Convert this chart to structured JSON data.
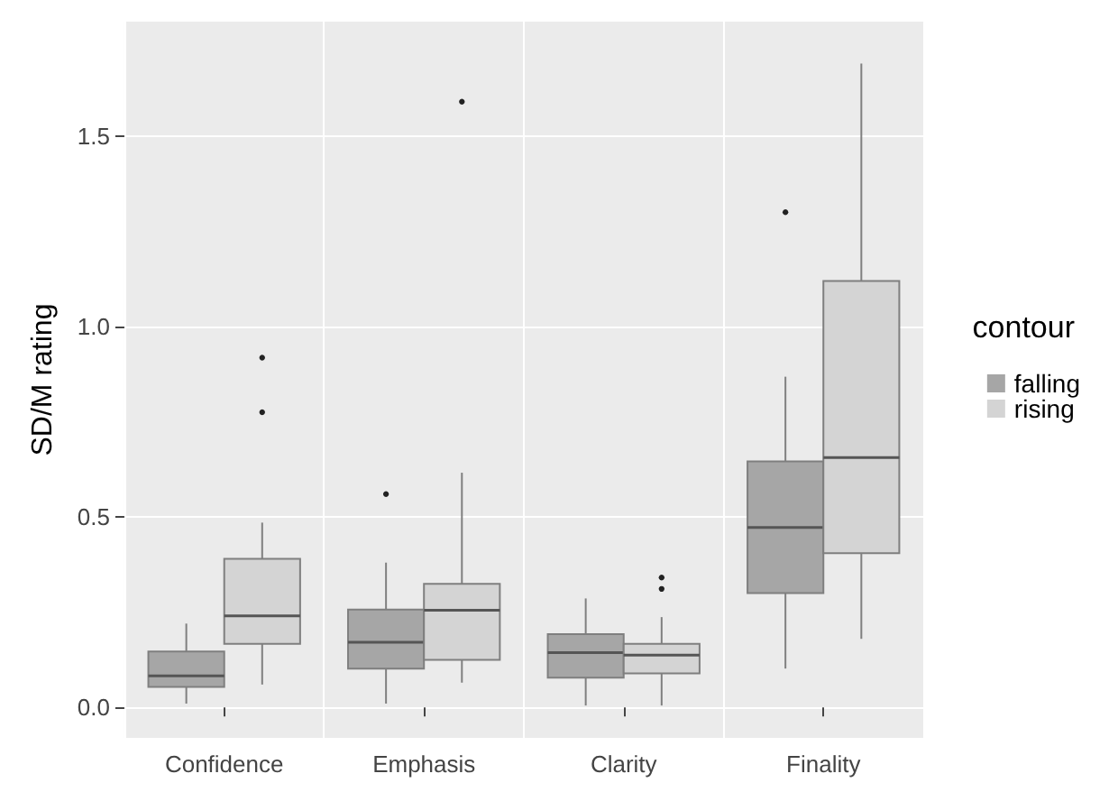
{
  "chart_data": {
    "type": "box",
    "ylabel": "SD/M rating",
    "legend_title": "contour",
    "categories": [
      "Confidence",
      "Emphasis",
      "Clarity",
      "Finality"
    ],
    "ylim": [
      -0.08,
      1.8
    ],
    "yticks": [
      {
        "value": 0,
        "label": "0.0"
      },
      {
        "value": 0.5,
        "label": "0.5"
      },
      {
        "value": 1,
        "label": "1.0"
      },
      {
        "value": 1.5,
        "label": "1.5"
      }
    ],
    "grid": true,
    "legend": "right",
    "series": [
      {
        "name": "falling",
        "color": "#a6a6a6",
        "boxes": [
          {
            "low": 0.01,
            "q1": 0.054,
            "median": 0.083,
            "q3": 0.147,
            "high": 0.22
          },
          {
            "low": 0.01,
            "q1": 0.102,
            "median": 0.171,
            "q3": 0.257,
            "high": 0.38,
            "outliers": [
              0.56
            ]
          },
          {
            "low": 0.005,
            "q1": 0.078,
            "median": 0.144,
            "q3": 0.192,
            "high": 0.286
          },
          {
            "low": 0.102,
            "q1": 0.3,
            "median": 0.472,
            "q3": 0.646,
            "high": 0.868,
            "outliers": [
              1.3
            ]
          }
        ]
      },
      {
        "name": "rising",
        "color": "#d4d4d4",
        "boxes": [
          {
            "low": 0.06,
            "q1": 0.167,
            "median": 0.24,
            "q3": 0.39,
            "high": 0.485,
            "outliers": [
              0.775,
              0.918
            ]
          },
          {
            "low": 0.065,
            "q1": 0.125,
            "median": 0.255,
            "q3": 0.324,
            "high": 0.616,
            "outliers": [
              1.59
            ]
          },
          {
            "low": 0.005,
            "q1": 0.089,
            "median": 0.137,
            "q3": 0.167,
            "high": 0.237,
            "outliers": [
              0.311,
              0.341
            ]
          },
          {
            "low": 0.18,
            "q1": 0.405,
            "median": 0.656,
            "q3": 1.119,
            "high": 1.69
          }
        ]
      }
    ]
  }
}
